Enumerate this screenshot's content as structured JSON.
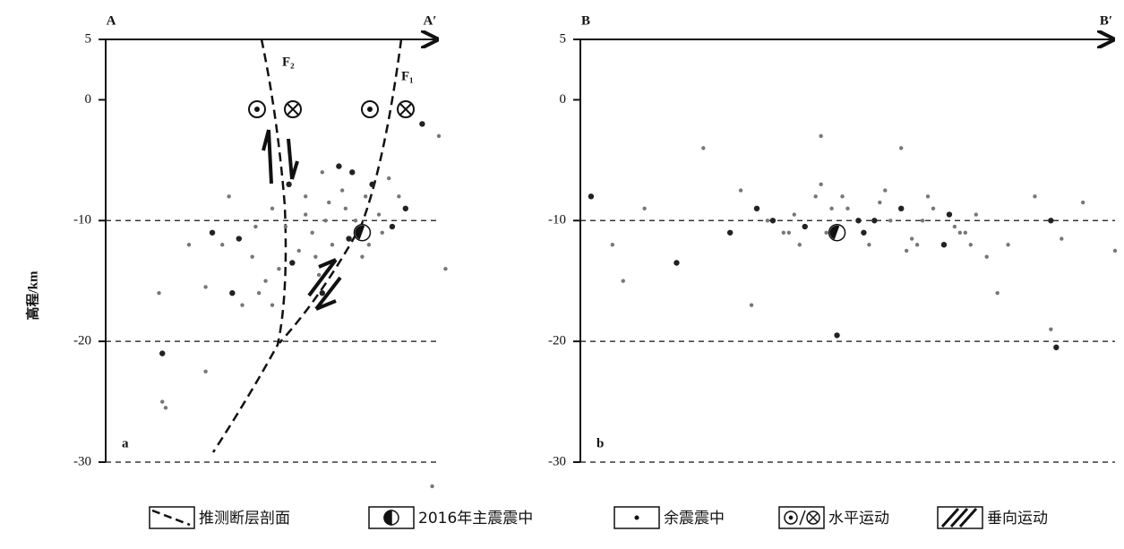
{
  "chart_data": [
    {
      "type": "scatter",
      "left_label": "A",
      "right_label": "A′",
      "panel_label": "a",
      "ylabel": "高程/km",
      "fault_labels": [
        "F₂",
        "F₁"
      ],
      "ylim": [
        -30,
        5
      ],
      "yticks": [
        5,
        0,
        -10,
        -20,
        -30
      ],
      "aftershocks": {
        "x": [
          40,
          35,
          45,
          50,
          55,
          60,
          62,
          65,
          70,
          72,
          75,
          78,
          80,
          82,
          85,
          88,
          90,
          58,
          63,
          68,
          73,
          77,
          52,
          48,
          56,
          66,
          71,
          83,
          86,
          60,
          54,
          67,
          74,
          79,
          64,
          44,
          38,
          30,
          25,
          37,
          95,
          100,
          102,
          16,
          17,
          30,
          17,
          18,
          32,
          41,
          50,
          46,
          65,
          98
        ],
        "y": [
          -11.5,
          -12,
          -10.5,
          -9,
          -7,
          -8,
          -11,
          -6,
          -5.5,
          -9,
          -10,
          -8,
          -7,
          -9.5,
          -6.5,
          -8,
          -9,
          -12.5,
          -13,
          -12,
          -11.5,
          -13,
          -14,
          -15,
          -13.5,
          -10,
          -7.5,
          -11,
          -10.5,
          -9.5,
          -10.5,
          -8.5,
          -6,
          -12,
          -14.5,
          -13,
          -16,
          -15.5,
          -12,
          -8,
          -2,
          -3,
          -14,
          -16,
          -21,
          -22.5,
          -25,
          -25.5,
          -11,
          -17,
          -17,
          -16,
          -16,
          -32
        ]
      },
      "mainshock": {
        "x": 77,
        "y": -11
      }
    },
    {
      "type": "scatter",
      "left_label": "B",
      "right_label": "B′",
      "panel_label": "b",
      "ylim": [
        -30,
        5
      ],
      "yticks": [
        5,
        0,
        -10,
        -20,
        -30
      ],
      "aftershocks": {
        "x": [
          33,
          35,
          38,
          40,
          42,
          44,
          46,
          50,
          52,
          54,
          56,
          58,
          60,
          62,
          64,
          66,
          68,
          70,
          72,
          74,
          36,
          41,
          45,
          49,
          53,
          57,
          61,
          65,
          69,
          73,
          39,
          47,
          55,
          63,
          71,
          30,
          28,
          76,
          80,
          85,
          88,
          90,
          94,
          100,
          2,
          6,
          8,
          12,
          18,
          23,
          32,
          45,
          48,
          60,
          78,
          88,
          89
        ],
        "y": [
          -9,
          -10,
          -11,
          -9.5,
          -10.5,
          -8,
          -11,
          -9,
          -10,
          -12,
          -8.5,
          -10,
          -9,
          -11.5,
          -10,
          -9,
          -12,
          -10.5,
          -11,
          -9.5,
          -10,
          -12,
          -7,
          -8,
          -11,
          -7.5,
          -12.5,
          -8,
          -9.5,
          -12,
          -11,
          -9,
          -10,
          -12,
          -11,
          -7.5,
          -11,
          -13,
          -12,
          -8,
          -10,
          -11.5,
          -8.5,
          -12.5,
          -8,
          -12,
          -15,
          -9,
          -13.5,
          -4,
          -17,
          -3,
          -19.5,
          -4,
          -16,
          -19,
          -20.5
        ]
      },
      "mainshock": {
        "x": 48,
        "y": -11
      }
    }
  ],
  "legend": [
    "推测断层剖面",
    "2016年主震震中",
    "余震震中",
    "水平运动",
    "垂向运动"
  ]
}
